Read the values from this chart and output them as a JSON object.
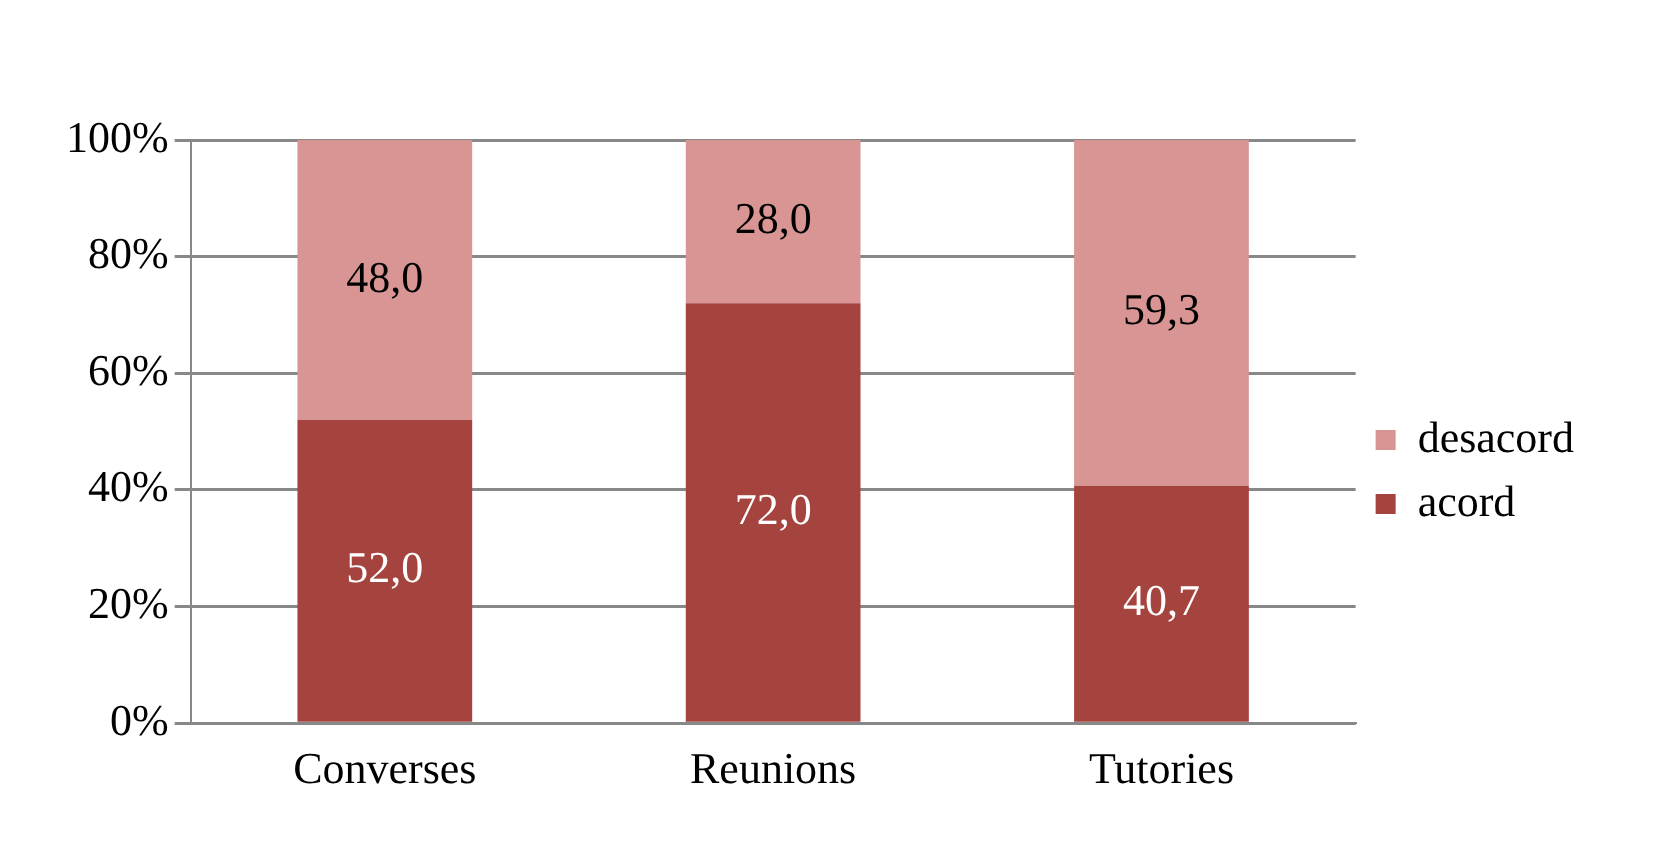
{
  "chart_data": {
    "type": "bar",
    "stacked": true,
    "categories": [
      "Converses",
      "Reunions",
      "Tutories"
    ],
    "series": [
      {
        "name": "acord",
        "color": "#a5433f",
        "values": [
          52.0,
          72.0,
          40.7
        ],
        "value_labels": [
          "52,0",
          "72,0",
          "40,7"
        ]
      },
      {
        "name": "desacord",
        "color": "#d99593",
        "values": [
          48.0,
          28.0,
          59.3
        ],
        "value_labels": [
          "48,0",
          "28,0",
          "59,3"
        ]
      }
    ],
    "ylim": [
      0,
      100
    ],
    "yticks": [
      {
        "value": 0,
        "label": "0%"
      },
      {
        "value": 20,
        "label": "20%"
      },
      {
        "value": 40,
        "label": "40%"
      },
      {
        "value": 60,
        "label": "60%"
      },
      {
        "value": 80,
        "label": "80%"
      },
      {
        "value": 100,
        "label": "100%"
      }
    ],
    "grid": "y",
    "legend": "right"
  }
}
